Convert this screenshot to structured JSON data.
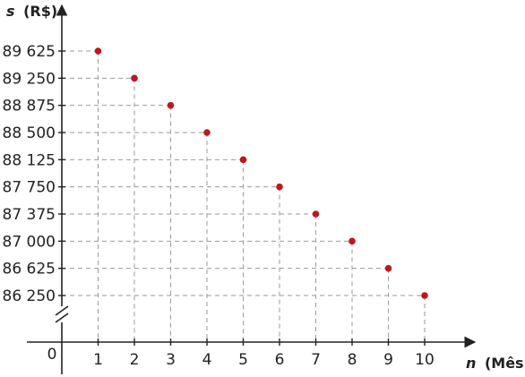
{
  "chart_data": {
    "type": "scatter",
    "title": "",
    "xlabel_var": "n",
    "xlabel_unit": "(Mês)",
    "ylabel_var": "s",
    "ylabel_unit": "(R$)",
    "origin_label": "0",
    "x": [
      1,
      2,
      3,
      4,
      5,
      6,
      7,
      8,
      9,
      10
    ],
    "y": [
      89625,
      89250,
      88875,
      88500,
      88125,
      87750,
      87375,
      87000,
      86625,
      86250
    ],
    "x_tick_labels": [
      "1",
      "2",
      "3",
      "4",
      "5",
      "6",
      "7",
      "8",
      "9",
      "10"
    ],
    "y_tick_labels": [
      "89 625",
      "89 250",
      "88 875",
      "88 500",
      "88 125",
      "87 750",
      "87 375",
      "87 000",
      "86 625",
      "86 250"
    ],
    "xlim": [
      0,
      10
    ],
    "ylim": [
      86250,
      89625
    ],
    "y_axis_break": true,
    "grid": "dashed guide lines from each point to both axes",
    "colors": {
      "point": "#c0161d",
      "axis": "#222222",
      "guide": "#9a9a9a"
    }
  }
}
